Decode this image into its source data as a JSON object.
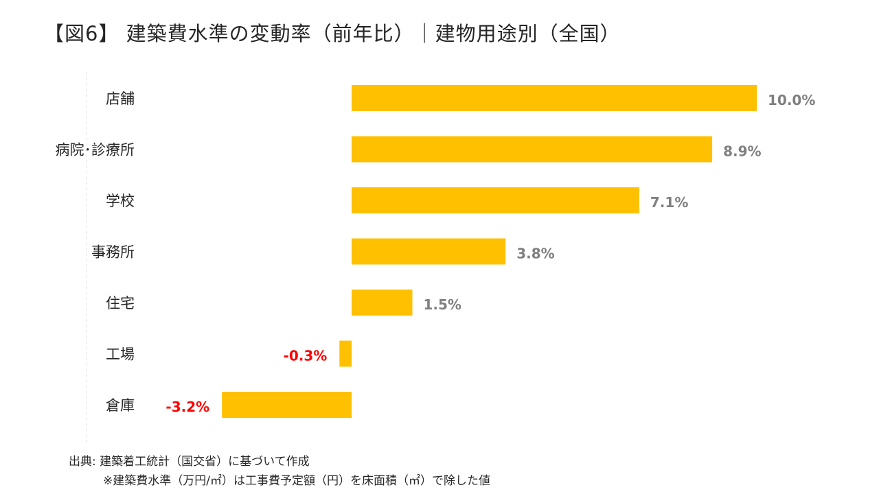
{
  "title": "【図6】 建築費水準の変動率（前年比）｜建物用途別（全国）",
  "source": "出典: 建築着工統計（国交省）に基づいて作成",
  "note": "※建築費水準（万円/㎡）は工事費予定額（円）を床面積（㎡）で除した値",
  "colors": {
    "bar": "#FFC000",
    "positive_label": "#7F7F7F",
    "negative_label": "#FF0000"
  },
  "chart_data": {
    "type": "bar",
    "orientation": "horizontal",
    "categories": [
      "店舗",
      "病院･診療所",
      "学校",
      "事務所",
      "住宅",
      "工場",
      "倉庫"
    ],
    "values": [
      10.0,
      8.9,
      7.1,
      3.8,
      1.5,
      -0.3,
      -3.2
    ],
    "value_labels": [
      "10.0%",
      "8.9%",
      "7.1%",
      "3.8%",
      "1.5%",
      "-0.3%",
      "-3.2%"
    ],
    "unit": "%",
    "xlim": [
      -3.2,
      10.0
    ],
    "grid": false,
    "legend": "none"
  }
}
